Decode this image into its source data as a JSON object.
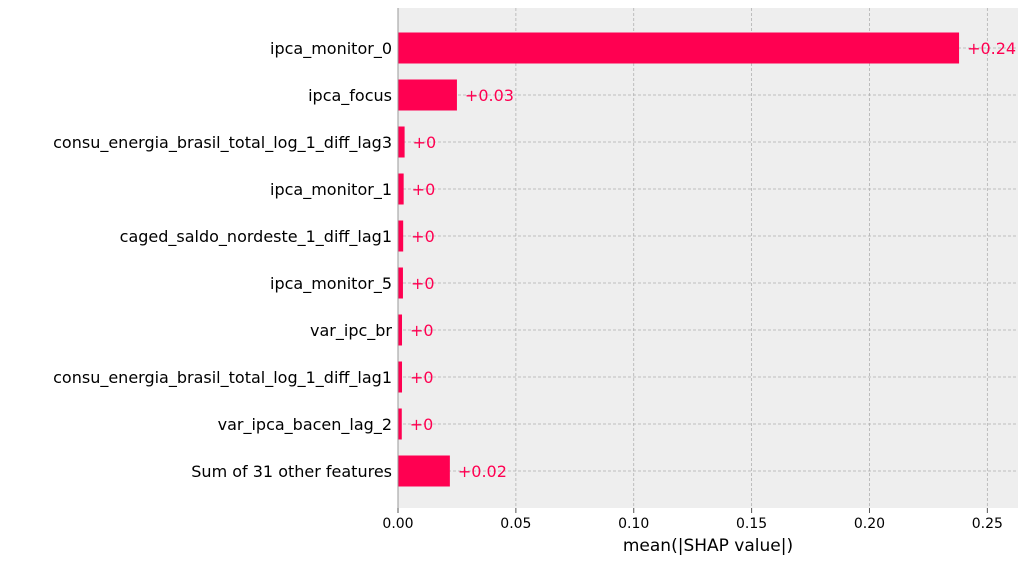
{
  "chart_data": {
    "type": "bar",
    "orientation": "horizontal",
    "title": "",
    "xlabel": "mean(|SHAP value|)",
    "ylabel": "",
    "xlim": [
      0,
      0.263
    ],
    "x_ticks": [
      0.0,
      0.05,
      0.1,
      0.15,
      0.2,
      0.25
    ],
    "x_tick_labels": [
      "0.00",
      "0.05",
      "0.10",
      "0.15",
      "0.20",
      "0.25"
    ],
    "grid": true,
    "legend": false,
    "bar_color": "#ff0051",
    "background_color": "#eeeeee",
    "categories": [
      "ipca_monitor_0",
      "ipca_focus",
      "consu_energia_brasil_total_log_1_diff_lag3",
      "ipca_monitor_1",
      "caged_saldo_nordeste_1_diff_lag1",
      "ipca_monitor_5",
      "var_ipc_br",
      "consu_energia_brasil_total_log_1_diff_lag1",
      "var_ipca_bacen_lag_2",
      "Sum of 31 other features"
    ],
    "values": [
      0.238,
      0.025,
      0.0028,
      0.0024,
      0.0022,
      0.0021,
      0.0017,
      0.0017,
      0.0016,
      0.022
    ],
    "data_labels": [
      "+0.24",
      "+0.03",
      "+0",
      "+0",
      "+0",
      "+0",
      "+0",
      "+0",
      "+0",
      "+0.02"
    ]
  }
}
